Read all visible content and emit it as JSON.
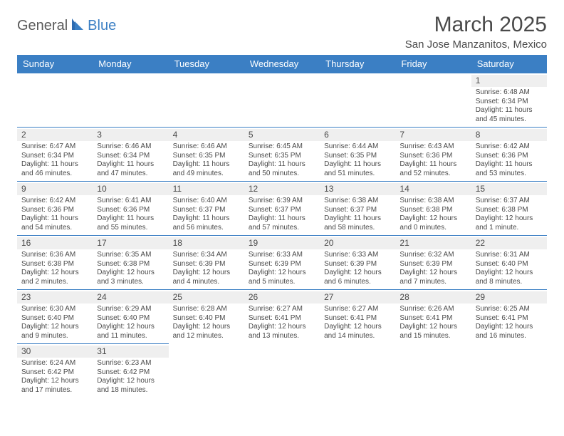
{
  "logo": {
    "part1": "General",
    "part2": "Blue"
  },
  "title": "March 2025",
  "location": "San Jose Manzanitos, Mexico",
  "colors": {
    "header_bg": "#3b7fc4",
    "header_text": "#ffffff",
    "text": "#4a4a4a",
    "daynum_bg": "#efefef",
    "border": "#3b7fc4"
  },
  "day_headers": [
    "Sunday",
    "Monday",
    "Tuesday",
    "Wednesday",
    "Thursday",
    "Friday",
    "Saturday"
  ],
  "weeks": [
    [
      null,
      null,
      null,
      null,
      null,
      null,
      {
        "n": "1",
        "sr": "6:48 AM",
        "ss": "6:34 PM",
        "dl": "11 hours and 45 minutes."
      }
    ],
    [
      {
        "n": "2",
        "sr": "6:47 AM",
        "ss": "6:34 PM",
        "dl": "11 hours and 46 minutes."
      },
      {
        "n": "3",
        "sr": "6:46 AM",
        "ss": "6:34 PM",
        "dl": "11 hours and 47 minutes."
      },
      {
        "n": "4",
        "sr": "6:46 AM",
        "ss": "6:35 PM",
        "dl": "11 hours and 49 minutes."
      },
      {
        "n": "5",
        "sr": "6:45 AM",
        "ss": "6:35 PM",
        "dl": "11 hours and 50 minutes."
      },
      {
        "n": "6",
        "sr": "6:44 AM",
        "ss": "6:35 PM",
        "dl": "11 hours and 51 minutes."
      },
      {
        "n": "7",
        "sr": "6:43 AM",
        "ss": "6:36 PM",
        "dl": "11 hours and 52 minutes."
      },
      {
        "n": "8",
        "sr": "6:42 AM",
        "ss": "6:36 PM",
        "dl": "11 hours and 53 minutes."
      }
    ],
    [
      {
        "n": "9",
        "sr": "6:42 AM",
        "ss": "6:36 PM",
        "dl": "11 hours and 54 minutes."
      },
      {
        "n": "10",
        "sr": "6:41 AM",
        "ss": "6:36 PM",
        "dl": "11 hours and 55 minutes."
      },
      {
        "n": "11",
        "sr": "6:40 AM",
        "ss": "6:37 PM",
        "dl": "11 hours and 56 minutes."
      },
      {
        "n": "12",
        "sr": "6:39 AM",
        "ss": "6:37 PM",
        "dl": "11 hours and 57 minutes."
      },
      {
        "n": "13",
        "sr": "6:38 AM",
        "ss": "6:37 PM",
        "dl": "11 hours and 58 minutes."
      },
      {
        "n": "14",
        "sr": "6:38 AM",
        "ss": "6:38 PM",
        "dl": "12 hours and 0 minutes."
      },
      {
        "n": "15",
        "sr": "6:37 AM",
        "ss": "6:38 PM",
        "dl": "12 hours and 1 minute."
      }
    ],
    [
      {
        "n": "16",
        "sr": "6:36 AM",
        "ss": "6:38 PM",
        "dl": "12 hours and 2 minutes."
      },
      {
        "n": "17",
        "sr": "6:35 AM",
        "ss": "6:38 PM",
        "dl": "12 hours and 3 minutes."
      },
      {
        "n": "18",
        "sr": "6:34 AM",
        "ss": "6:39 PM",
        "dl": "12 hours and 4 minutes."
      },
      {
        "n": "19",
        "sr": "6:33 AM",
        "ss": "6:39 PM",
        "dl": "12 hours and 5 minutes."
      },
      {
        "n": "20",
        "sr": "6:33 AM",
        "ss": "6:39 PM",
        "dl": "12 hours and 6 minutes."
      },
      {
        "n": "21",
        "sr": "6:32 AM",
        "ss": "6:39 PM",
        "dl": "12 hours and 7 minutes."
      },
      {
        "n": "22",
        "sr": "6:31 AM",
        "ss": "6:40 PM",
        "dl": "12 hours and 8 minutes."
      }
    ],
    [
      {
        "n": "23",
        "sr": "6:30 AM",
        "ss": "6:40 PM",
        "dl": "12 hours and 9 minutes."
      },
      {
        "n": "24",
        "sr": "6:29 AM",
        "ss": "6:40 PM",
        "dl": "12 hours and 11 minutes."
      },
      {
        "n": "25",
        "sr": "6:28 AM",
        "ss": "6:40 PM",
        "dl": "12 hours and 12 minutes."
      },
      {
        "n": "26",
        "sr": "6:27 AM",
        "ss": "6:41 PM",
        "dl": "12 hours and 13 minutes."
      },
      {
        "n": "27",
        "sr": "6:27 AM",
        "ss": "6:41 PM",
        "dl": "12 hours and 14 minutes."
      },
      {
        "n": "28",
        "sr": "6:26 AM",
        "ss": "6:41 PM",
        "dl": "12 hours and 15 minutes."
      },
      {
        "n": "29",
        "sr": "6:25 AM",
        "ss": "6:41 PM",
        "dl": "12 hours and 16 minutes."
      }
    ],
    [
      {
        "n": "30",
        "sr": "6:24 AM",
        "ss": "6:42 PM",
        "dl": "12 hours and 17 minutes."
      },
      {
        "n": "31",
        "sr": "6:23 AM",
        "ss": "6:42 PM",
        "dl": "12 hours and 18 minutes."
      },
      null,
      null,
      null,
      null,
      null
    ]
  ],
  "labels": {
    "sunrise": "Sunrise:",
    "sunset": "Sunset:",
    "daylight": "Daylight:"
  }
}
